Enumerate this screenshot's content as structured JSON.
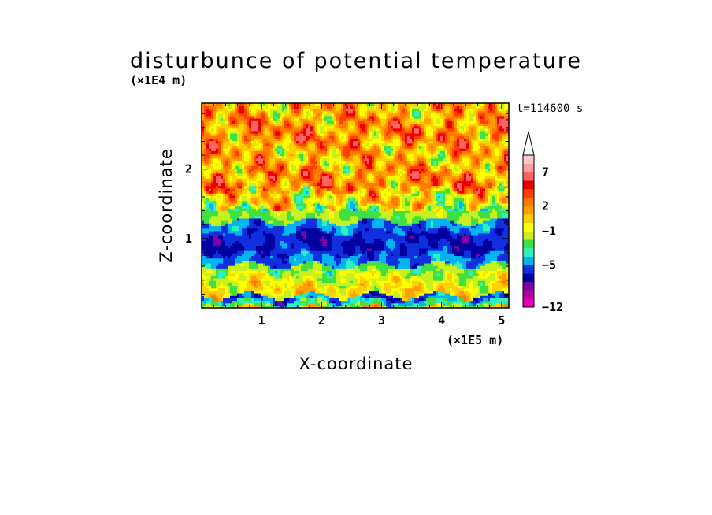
{
  "chart_data": {
    "type": "heatmap",
    "title": "disturbunce of potential temperature",
    "xlabel": "X-coordinate",
    "ylabel": "Z-coordinate",
    "x_unit": "(×1E5 m)",
    "y_unit": "(×1E4 m)",
    "time_label": "t=114600 s",
    "xlim": [
      0,
      5.12
    ],
    "ylim": [
      0,
      2.95
    ],
    "xticks": [
      "1",
      "2",
      "3",
      "4",
      "5"
    ],
    "yticks": [
      "1",
      "2"
    ],
    "colorbar": {
      "tick_labels": [
        "7",
        "2",
        "−1",
        "−5",
        "−12"
      ],
      "levels": [
        -12,
        -10,
        -8,
        -7,
        -6,
        -5,
        -4,
        -3,
        -2,
        -1,
        0,
        1,
        2,
        3,
        4,
        5,
        7,
        9,
        11
      ],
      "colors": [
        "#e000b8",
        "#b4009c",
        "#8000a8",
        "#0000a0",
        "#1030e0",
        "#00b4f0",
        "#30f0c0",
        "#40e040",
        "#c8f020",
        "#ffff00",
        "#ffd000",
        "#ffa000",
        "#ff7800",
        "#ff4000",
        "#e80000",
        "#ff6464",
        "#ffa0a0",
        "#ffc8c8"
      ],
      "extend": "max"
    },
    "z_bands": [
      {
        "z": [
          0.0,
          0.1
        ],
        "value": -3
      },
      {
        "z": [
          0.1,
          0.18
        ],
        "value": -5
      },
      {
        "z": [
          0.18,
          0.35
        ],
        "value": 0
      },
      {
        "z": [
          0.35,
          0.5
        ],
        "value": -1
      },
      {
        "z": [
          0.5,
          0.62
        ],
        "value": -2
      },
      {
        "z": [
          0.62,
          0.78
        ],
        "value": -5
      },
      {
        "z": [
          0.78,
          1.1
        ],
        "value": -6
      },
      {
        "z": [
          1.1,
          1.25
        ],
        "value": -5
      },
      {
        "z": [
          1.25,
          1.45
        ],
        "value": -2
      },
      {
        "z": [
          1.45,
          1.7
        ],
        "value": 0
      },
      {
        "z": [
          1.7,
          2.0
        ],
        "value": 2
      },
      {
        "z": [
          2.0,
          2.35
        ],
        "value": 1
      },
      {
        "z": [
          2.35,
          2.7
        ],
        "value": 2
      },
      {
        "z": [
          2.7,
          2.95
        ],
        "value": 1
      }
    ]
  }
}
